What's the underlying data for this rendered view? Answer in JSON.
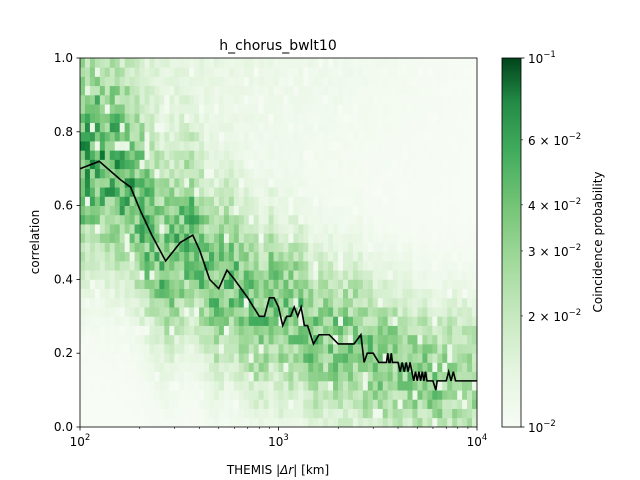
{
  "chart_data": {
    "type": "heatmap",
    "title": "h_chorus_bwlt10",
    "xlabel_prefix": "THEMIS |",
    "xlabel_italic": "Δr",
    "xlabel_suffix": "| [km]",
    "ylabel": "correlation",
    "xscale": "log",
    "xlim": [
      100,
      10000
    ],
    "ylim": [
      0.0,
      1.0
    ],
    "x_ticks": [
      {
        "value": 100,
        "base": "10",
        "exp": "2"
      },
      {
        "value": 1000,
        "base": "10",
        "exp": "3"
      },
      {
        "value": 10000,
        "base": "10",
        "exp": "4"
      }
    ],
    "y_ticks": [
      {
        "value": 0.0,
        "label": "0.0"
      },
      {
        "value": 0.2,
        "label": "0.2"
      },
      {
        "value": 0.4,
        "label": "0.4"
      },
      {
        "value": 0.6,
        "label": "0.6"
      },
      {
        "value": 0.8,
        "label": "0.8"
      },
      {
        "value": 1.0,
        "label": "1.0"
      }
    ],
    "colormap": "Greens",
    "color_low": "#f7fcf5",
    "color_high": "#00441b",
    "colorbar": {
      "label": "Coincidence probability",
      "scale": "log",
      "range": [
        0.01,
        0.1
      ],
      "major_ticks": [
        {
          "value": 0.1,
          "base": "10",
          "exp": "−1"
        },
        {
          "value": 0.01,
          "base": "10",
          "exp": "−2"
        }
      ],
      "minor_ticks": [
        {
          "value": 0.06,
          "coef": "6 × 10",
          "exp": "−2"
        },
        {
          "value": 0.04,
          "coef": "4 × 10",
          "exp": "−2"
        },
        {
          "value": 0.03,
          "coef": "3 × 10",
          "exp": "−2"
        },
        {
          "value": 0.02,
          "coef": "2 × 10",
          "exp": "−2"
        }
      ]
    },
    "median_line": {
      "color": "#000000",
      "x": [
        100,
        125,
        160,
        180,
        200,
        230,
        270,
        320,
        370,
        400,
        450,
        500,
        550,
        600,
        700,
        800,
        850,
        900,
        950,
        1000,
        1050,
        1100,
        1150,
        1200,
        1250,
        1300,
        1350,
        1400,
        1450,
        1500,
        1600,
        1800,
        2000,
        2200,
        2400,
        2600,
        2700,
        2800,
        3000,
        3200,
        3400,
        3500,
        3550,
        3600,
        3650,
        3700,
        3750,
        3800,
        3900,
        4000,
        4100,
        4200,
        4300,
        4400,
        4500,
        4600,
        4700,
        4800,
        4900,
        5000,
        5100,
        5200,
        5300,
        5400,
        5500,
        5600,
        5800,
        6000,
        6200,
        6300,
        6400,
        6600,
        6800,
        7000,
        7200,
        7400,
        7600,
        7800,
        8000,
        8500,
        9000,
        10000
      ],
      "y": [
        0.7,
        0.72,
        0.67,
        0.65,
        0.59,
        0.52,
        0.45,
        0.5,
        0.52,
        0.48,
        0.4,
        0.375,
        0.425,
        0.4,
        0.35,
        0.3,
        0.3,
        0.35,
        0.35,
        0.325,
        0.275,
        0.3,
        0.3,
        0.325,
        0.3,
        0.325,
        0.275,
        0.275,
        0.25,
        0.225,
        0.25,
        0.25,
        0.225,
        0.225,
        0.225,
        0.25,
        0.175,
        0.2,
        0.2,
        0.175,
        0.175,
        0.175,
        0.2,
        0.175,
        0.175,
        0.2,
        0.175,
        0.175,
        0.175,
        0.175,
        0.15,
        0.175,
        0.15,
        0.175,
        0.15,
        0.175,
        0.15,
        0.125,
        0.15,
        0.125,
        0.15,
        0.125,
        0.15,
        0.125,
        0.15,
        0.125,
        0.125,
        0.125,
        0.1,
        0.125,
        0.125,
        0.125,
        0.125,
        0.125,
        0.15,
        0.125,
        0.15,
        0.125,
        0.125,
        0.125,
        0.125,
        0.125
      ]
    }
  }
}
